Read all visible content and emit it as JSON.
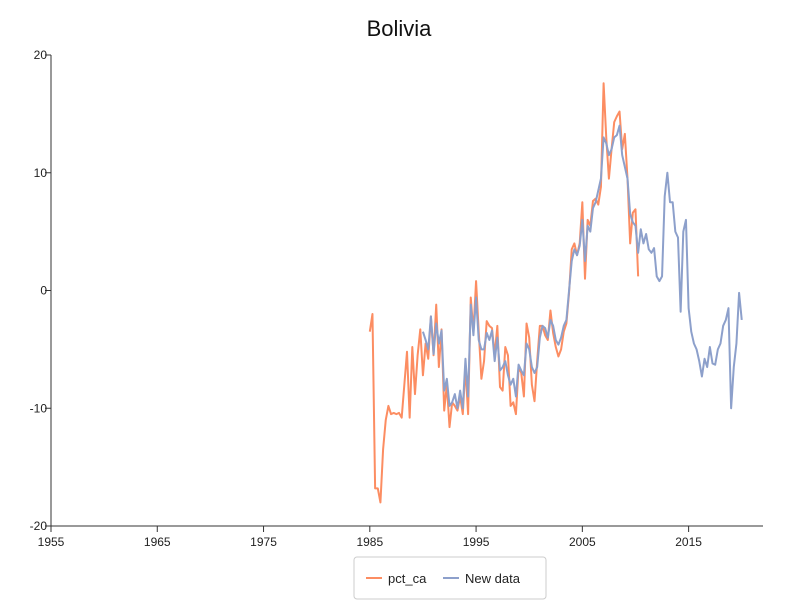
{
  "chart_data": {
    "type": "line",
    "title": "Bolivia",
    "xlabel": "",
    "ylabel": "",
    "xlim": [
      1955,
      2022
    ],
    "ylim": [
      -20,
      20
    ],
    "x_ticks": [
      1955,
      1965,
      1975,
      1985,
      1995,
      2005,
      2015
    ],
    "y_ticks": [
      -20,
      -10,
      0,
      10,
      20
    ],
    "grid": false,
    "legend_position": "bottom-center",
    "series": [
      {
        "name": "pct_ca",
        "color": "#fc8d62",
        "points": [
          [
            1985.0,
            -3.5
          ],
          [
            1985.25,
            -2.0
          ],
          [
            1985.5,
            -16.8
          ],
          [
            1985.75,
            -16.8
          ],
          [
            1986.0,
            -18.0
          ],
          [
            1986.25,
            -13.5
          ],
          [
            1986.5,
            -11.0
          ],
          [
            1986.75,
            -9.8
          ],
          [
            1987.0,
            -10.5
          ],
          [
            1987.25,
            -10.4
          ],
          [
            1987.5,
            -10.5
          ],
          [
            1987.75,
            -10.4
          ],
          [
            1988.0,
            -10.8
          ],
          [
            1988.25,
            -8.0
          ],
          [
            1988.5,
            -5.2
          ],
          [
            1988.75,
            -10.8
          ],
          [
            1989.0,
            -4.8
          ],
          [
            1989.25,
            -8.8
          ],
          [
            1989.5,
            -5.5
          ],
          [
            1989.75,
            -3.3
          ],
          [
            1990.0,
            -7.2
          ],
          [
            1990.25,
            -4.5
          ],
          [
            1990.5,
            -5.8
          ],
          [
            1990.75,
            -2.2
          ],
          [
            1991.0,
            -5.5
          ],
          [
            1991.25,
            -1.2
          ],
          [
            1991.5,
            -6.5
          ],
          [
            1991.75,
            -3.3
          ],
          [
            1992.0,
            -10.2
          ],
          [
            1992.25,
            -8.0
          ],
          [
            1992.5,
            -11.6
          ],
          [
            1992.75,
            -9.5
          ],
          [
            1993.0,
            -9.8
          ],
          [
            1993.25,
            -10.2
          ],
          [
            1993.5,
            -9.0
          ],
          [
            1993.75,
            -10.5
          ],
          [
            1994.0,
            -6.5
          ],
          [
            1994.25,
            -10.5
          ],
          [
            1994.5,
            -0.6
          ],
          [
            1994.75,
            -3.5
          ],
          [
            1995.0,
            0.8
          ],
          [
            1995.25,
            -3.5
          ],
          [
            1995.5,
            -7.5
          ],
          [
            1995.75,
            -6.0
          ],
          [
            1996.0,
            -2.6
          ],
          [
            1996.25,
            -3.0
          ],
          [
            1996.5,
            -3.2
          ],
          [
            1996.75,
            -5.5
          ],
          [
            1997.0,
            -3.0
          ],
          [
            1997.25,
            -8.2
          ],
          [
            1997.5,
            -8.5
          ],
          [
            1997.75,
            -4.8
          ],
          [
            1998.0,
            -5.5
          ],
          [
            1998.25,
            -9.8
          ],
          [
            1998.5,
            -9.5
          ],
          [
            1998.75,
            -10.5
          ],
          [
            1999.0,
            -6.5
          ],
          [
            1999.25,
            -7.0
          ],
          [
            1999.5,
            -9.0
          ],
          [
            1999.75,
            -2.8
          ],
          [
            2000.0,
            -4.0
          ],
          [
            2000.25,
            -8.0
          ],
          [
            2000.5,
            -9.4
          ],
          [
            2000.75,
            -6.0
          ],
          [
            2001.0,
            -3.0
          ],
          [
            2001.25,
            -3.0
          ],
          [
            2001.5,
            -3.8
          ],
          [
            2001.75,
            -4.2
          ],
          [
            2002.0,
            -1.7
          ],
          [
            2002.25,
            -3.6
          ],
          [
            2002.5,
            -4.8
          ],
          [
            2002.75,
            -5.6
          ],
          [
            2003.0,
            -5.0
          ],
          [
            2003.25,
            -3.5
          ],
          [
            2003.5,
            -2.8
          ],
          [
            2003.75,
            -0.2
          ],
          [
            2004.0,
            3.5
          ],
          [
            2004.25,
            4.0
          ],
          [
            2004.5,
            3.0
          ],
          [
            2004.75,
            4.0
          ],
          [
            2005.0,
            7.5
          ],
          [
            2005.25,
            1.0
          ],
          [
            2005.5,
            6.0
          ],
          [
            2005.75,
            5.5
          ],
          [
            2006.0,
            7.6
          ],
          [
            2006.25,
            7.8
          ],
          [
            2006.5,
            7.3
          ],
          [
            2006.75,
            8.8
          ],
          [
            2007.0,
            17.6
          ],
          [
            2007.25,
            13.0
          ],
          [
            2007.5,
            9.5
          ],
          [
            2007.75,
            12.0
          ],
          [
            2008.0,
            14.3
          ],
          [
            2008.25,
            14.8
          ],
          [
            2008.5,
            15.2
          ],
          [
            2008.75,
            12.0
          ],
          [
            2009.0,
            13.3
          ],
          [
            2009.25,
            9.5
          ],
          [
            2009.5,
            4.0
          ],
          [
            2009.75,
            6.6
          ],
          [
            2010.0,
            6.9
          ],
          [
            2010.25,
            1.2
          ]
        ]
      },
      {
        "name": "New data",
        "color": "#8da0cb",
        "points": [
          [
            1990.0,
            -3.5
          ],
          [
            1990.25,
            -4.2
          ],
          [
            1990.5,
            -5.0
          ],
          [
            1990.75,
            -2.2
          ],
          [
            1991.0,
            -5.4
          ],
          [
            1991.25,
            -2.8
          ],
          [
            1991.5,
            -4.5
          ],
          [
            1991.75,
            -3.4
          ],
          [
            1992.0,
            -8.5
          ],
          [
            1992.25,
            -7.5
          ],
          [
            1992.5,
            -9.8
          ],
          [
            1992.75,
            -9.5
          ],
          [
            1993.0,
            -8.8
          ],
          [
            1993.25,
            -10.0
          ],
          [
            1993.5,
            -8.5
          ],
          [
            1993.75,
            -10.0
          ],
          [
            1994.0,
            -5.8
          ],
          [
            1994.25,
            -9.0
          ],
          [
            1994.5,
            -1.2
          ],
          [
            1994.75,
            -3.8
          ],
          [
            1995.0,
            -0.6
          ],
          [
            1995.25,
            -4.2
          ],
          [
            1995.5,
            -5.0
          ],
          [
            1995.75,
            -5.0
          ],
          [
            1996.0,
            -3.6
          ],
          [
            1996.25,
            -4.2
          ],
          [
            1996.5,
            -3.4
          ],
          [
            1996.75,
            -6.0
          ],
          [
            1997.0,
            -4.0
          ],
          [
            1997.25,
            -6.8
          ],
          [
            1997.5,
            -6.5
          ],
          [
            1997.75,
            -6.0
          ],
          [
            1998.0,
            -7.2
          ],
          [
            1998.25,
            -8.0
          ],
          [
            1998.5,
            -7.5
          ],
          [
            1998.75,
            -9.0
          ],
          [
            1999.0,
            -6.3
          ],
          [
            1999.25,
            -6.8
          ],
          [
            1999.5,
            -7.2
          ],
          [
            1999.75,
            -4.5
          ],
          [
            2000.0,
            -5.0
          ],
          [
            2000.25,
            -6.5
          ],
          [
            2000.5,
            -7.0
          ],
          [
            2000.75,
            -6.5
          ],
          [
            2001.0,
            -4.0
          ],
          [
            2001.25,
            -3.0
          ],
          [
            2001.5,
            -3.2
          ],
          [
            2001.75,
            -4.0
          ],
          [
            2002.0,
            -2.5
          ],
          [
            2002.25,
            -3.0
          ],
          [
            2002.5,
            -4.2
          ],
          [
            2002.75,
            -4.6
          ],
          [
            2003.0,
            -4.0
          ],
          [
            2003.25,
            -3.0
          ],
          [
            2003.5,
            -2.5
          ],
          [
            2003.75,
            0.0
          ],
          [
            2004.0,
            2.5
          ],
          [
            2004.25,
            3.5
          ],
          [
            2004.5,
            3.0
          ],
          [
            2004.75,
            3.8
          ],
          [
            2005.0,
            6.0
          ],
          [
            2005.25,
            2.5
          ],
          [
            2005.5,
            5.5
          ],
          [
            2005.75,
            5.0
          ],
          [
            2006.0,
            7.0
          ],
          [
            2006.25,
            7.5
          ],
          [
            2006.5,
            8.5
          ],
          [
            2006.75,
            9.5
          ],
          [
            2007.0,
            13.0
          ],
          [
            2007.25,
            12.5
          ],
          [
            2007.5,
            11.5
          ],
          [
            2007.75,
            12.0
          ],
          [
            2008.0,
            13.0
          ],
          [
            2008.25,
            13.2
          ],
          [
            2008.5,
            14.0
          ],
          [
            2008.75,
            11.5
          ],
          [
            2009.0,
            10.5
          ],
          [
            2009.25,
            9.5
          ],
          [
            2009.5,
            6.5
          ],
          [
            2009.75,
            5.8
          ],
          [
            2010.0,
            5.5
          ],
          [
            2010.25,
            3.2
          ],
          [
            2010.5,
            5.2
          ],
          [
            2010.75,
            4.0
          ],
          [
            2011.0,
            4.8
          ],
          [
            2011.25,
            3.5
          ],
          [
            2011.5,
            3.2
          ],
          [
            2011.75,
            3.6
          ],
          [
            2012.0,
            1.2
          ],
          [
            2012.25,
            0.8
          ],
          [
            2012.5,
            1.2
          ],
          [
            2012.75,
            8.0
          ],
          [
            2013.0,
            10.0
          ],
          [
            2013.25,
            7.5
          ],
          [
            2013.5,
            7.5
          ],
          [
            2013.75,
            5.0
          ],
          [
            2014.0,
            4.5
          ],
          [
            2014.25,
            -1.8
          ],
          [
            2014.5,
            5.0
          ],
          [
            2014.75,
            6.0
          ],
          [
            2015.0,
            -1.5
          ],
          [
            2015.25,
            -3.5
          ],
          [
            2015.5,
            -4.5
          ],
          [
            2015.75,
            -5.0
          ],
          [
            2016.0,
            -6.0
          ],
          [
            2016.25,
            -7.3
          ],
          [
            2016.5,
            -5.8
          ],
          [
            2016.75,
            -6.5
          ],
          [
            2017.0,
            -4.8
          ],
          [
            2017.25,
            -6.2
          ],
          [
            2017.5,
            -6.3
          ],
          [
            2017.75,
            -5.0
          ],
          [
            2018.0,
            -4.5
          ],
          [
            2018.25,
            -3.0
          ],
          [
            2018.5,
            -2.5
          ],
          [
            2018.75,
            -1.5
          ],
          [
            2019.0,
            -10.0
          ],
          [
            2019.25,
            -6.5
          ],
          [
            2019.5,
            -4.5
          ],
          [
            2019.75,
            -0.2
          ],
          [
            2020.0,
            -2.5
          ]
        ]
      }
    ]
  }
}
